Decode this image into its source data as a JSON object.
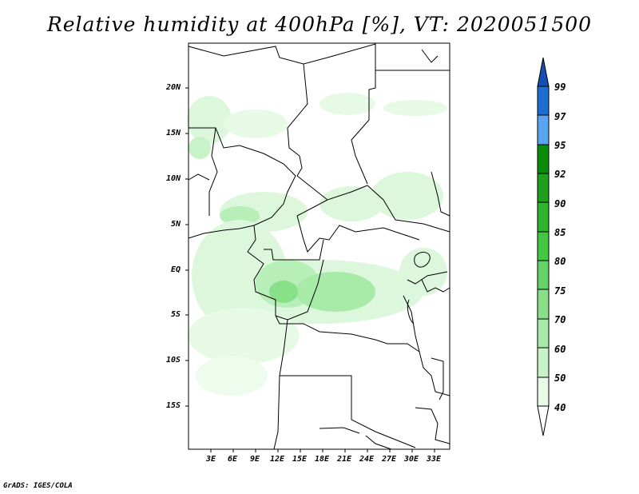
{
  "title": "Relative humidity at 400hPa [%], VT: 2020051500",
  "credit": "GrADS: IGES/COLA",
  "map": {
    "lat_labels": [
      "20N",
      "15N",
      "10N",
      "5N",
      "EQ",
      "5S",
      "10S",
      "15S"
    ],
    "lon_labels": [
      "3E",
      "6E",
      "9E",
      "12E",
      "15E",
      "18E",
      "21E",
      "24E",
      "27E",
      "30E",
      "33E"
    ]
  },
  "colorbar": {
    "levels": [
      "40",
      "50",
      "60",
      "70",
      "75",
      "80",
      "85",
      "90",
      "92",
      "95",
      "97",
      "99"
    ],
    "colors": [
      "#ffffff",
      "#e6fae6",
      "#c8f2c8",
      "#a8eaa8",
      "#88e088",
      "#64d264",
      "#44c844",
      "#2db42d",
      "#1ea01e",
      "#0a8c0a",
      "#5aa5f0",
      "#1e6ed2",
      "#1450b4"
    ]
  }
}
